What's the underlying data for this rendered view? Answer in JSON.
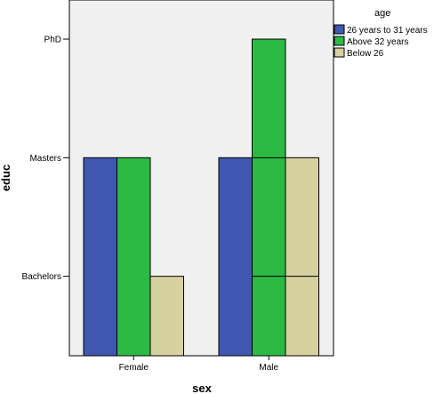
{
  "chart_data": {
    "type": "bar",
    "xlabel": "sex",
    "ylabel": "educ",
    "categories": [
      "Female",
      "Male"
    ],
    "y_levels": [
      "Bachelors",
      "Masters",
      "PhD"
    ],
    "ylim": [
      0.33,
      3.33
    ],
    "legend": {
      "title": "age",
      "placement": "top-right"
    },
    "grid": false,
    "series": [
      {
        "name": "26 years to 31 years",
        "color": "#3f57b1",
        "values": [
          2,
          2
        ]
      },
      {
        "name": "Above 32 years",
        "color": "#2cb944",
        "values": [
          2,
          3
        ],
        "stacked_segments": [
          null,
          [
            1,
            2,
            3
          ]
        ]
      },
      {
        "name": "Below 26",
        "color": "#d6d19e",
        "values": [
          1,
          2
        ],
        "stacked_segments": [
          null,
          [
            1,
            2
          ]
        ]
      }
    ]
  },
  "colors": {
    "plot_background": "#f0f0f0",
    "axis_line": "#000000"
  }
}
